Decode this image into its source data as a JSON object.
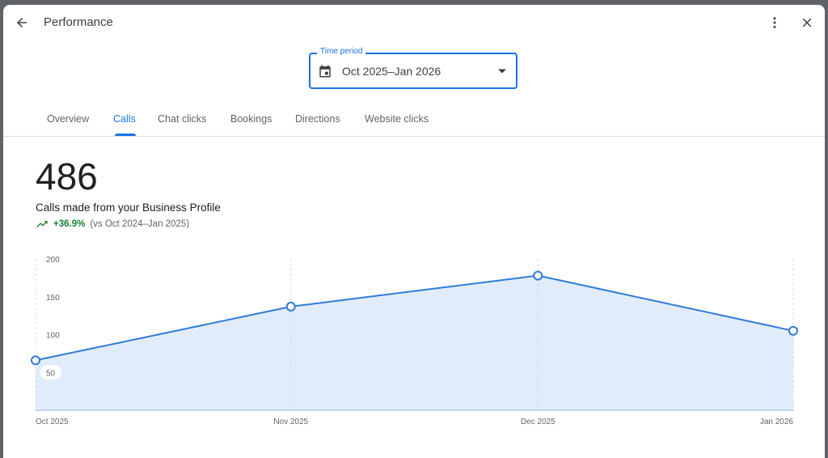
{
  "header": {
    "title": "Performance",
    "back_icon": "arrow-left-icon",
    "more_icon": "more-vert-icon",
    "close_icon": "close-icon"
  },
  "time_period": {
    "label": "Time period",
    "value": "Oct 2025–Jan 2026",
    "icon": "calendar-icon"
  },
  "tabs": [
    {
      "label": "Overview",
      "active": false
    },
    {
      "label": "Calls",
      "active": true
    },
    {
      "label": "Chat clicks",
      "active": false
    },
    {
      "label": "Bookings",
      "active": false
    },
    {
      "label": "Directions",
      "active": false
    },
    {
      "label": "Website clicks",
      "active": false
    }
  ],
  "summary": {
    "value": "486",
    "description": "Calls made from your Business Profile",
    "change": "+36.9%",
    "comparison": "(vs Oct 2024–Jan 2025)"
  },
  "colors": {
    "accent": "#1a73e8",
    "line": "#2f7bd9",
    "fill": "#e1ecfb",
    "positive": "#188038"
  },
  "chart_data": {
    "type": "area",
    "x": [
      "2025-10-01",
      "2025-11-01",
      "2025-12-01",
      "2026-01-01"
    ],
    "x_tick_labels": [
      "Oct 2025",
      "Nov 2025",
      "Dec 2025",
      "Jan 2026"
    ],
    "values": [
      66,
      137,
      178,
      105
    ],
    "y_ticks": [
      50,
      100,
      150,
      200
    ],
    "ylim": [
      0,
      200
    ],
    "grid": "vertical dashed"
  }
}
